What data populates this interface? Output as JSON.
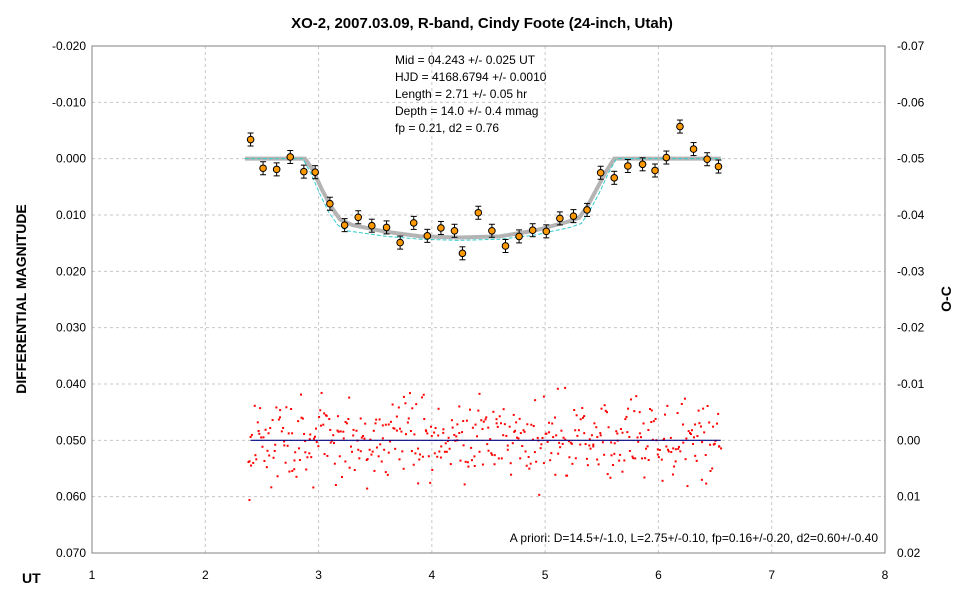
{
  "chart_data": {
    "type": "scatter",
    "title": "XO-2, 2007.03.09, R-band, Cindy Foote (24-inch, Utah)",
    "xlabel": "UT",
    "ylabel": "DIFFERENTIAL MAGNITUDE",
    "y2label": "O-C",
    "xlim": [
      1,
      8
    ],
    "ylim": [
      -0.02,
      0.07
    ],
    "y2lim": [
      -0.07,
      0.02
    ],
    "y_inverted": true,
    "grid": true,
    "x_ticks": [
      "1",
      "2",
      "3",
      "4",
      "5",
      "6",
      "7",
      "8"
    ],
    "y_ticks": [
      "-0.020",
      "-0.010",
      "0.000",
      "0.010",
      "0.020",
      "0.030",
      "0.040",
      "0.050",
      "0.060",
      "0.070"
    ],
    "y2_ticks": [
      "-0.07",
      "-0.06",
      "-0.05",
      "-0.04",
      "-0.03",
      "-0.02",
      "-0.01",
      "0.00",
      "0.01",
      "0.02"
    ],
    "fit_text": [
      "Mid  = 04.243 +/- 0.025 UT",
      "HJD = 4168.6794 +/- 0.0010",
      "Length = 2.71 +/- 0.05 hr",
      "Depth = 14.0 +/- 0.4 mmag",
      "fp = 0.21, d2 = 0.76"
    ],
    "apriori_text": "A priori: D=14.5+/-1.0, L=2.75+/-0.10, fp=0.16+/-0.20, d2=0.60+/-0.40",
    "colors": {
      "binned_points": "#ff9900",
      "raw_residuals": "#ff0000",
      "fit_model": "#b4b4b4",
      "apriori_model": "#33cccc",
      "zero_line": "#000080",
      "grid": "#c8c8c8"
    },
    "series": [
      {
        "kind": "binned_points",
        "x": [
          2.4,
          2.51,
          2.63,
          2.75,
          2.87,
          2.97,
          3.1,
          3.23,
          3.35,
          3.47,
          3.6,
          3.72,
          3.84,
          3.96,
          4.08,
          4.2,
          4.27,
          4.41,
          4.53,
          4.65,
          4.77,
          4.89,
          5.01,
          5.13,
          5.25,
          5.37,
          5.49,
          5.61,
          5.73,
          5.86,
          5.97,
          6.07,
          6.19,
          6.31,
          6.43,
          6.53
        ],
        "y": [
          -0.0034,
          0.0017,
          0.0019,
          -0.0003,
          0.0023,
          0.0024,
          0.008,
          0.0118,
          0.0104,
          0.0119,
          0.0122,
          0.0149,
          0.0114,
          0.0137,
          0.0123,
          0.0128,
          0.0168,
          0.0096,
          0.0128,
          0.0155,
          0.0138,
          0.0127,
          0.0129,
          0.0106,
          0.0102,
          0.0091,
          0.0025,
          0.0034,
          0.0013,
          0.001,
          0.0021,
          -0.0002,
          -0.0057,
          -0.0017,
          0.0001,
          0.0014
        ],
        "error": 0.0008
      },
      {
        "kind": "fit_model",
        "x": [
          2.35,
          2.88,
          2.95,
          3.03,
          3.11,
          3.19,
          3.3,
          3.6,
          3.9,
          4.24,
          4.6,
          4.9,
          5.2,
          5.3,
          5.38,
          5.46,
          5.54,
          5.61,
          6.55
        ],
        "y": [
          0.0,
          0.0,
          0.002,
          0.0055,
          0.0085,
          0.0108,
          0.0118,
          0.013,
          0.0138,
          0.014,
          0.0138,
          0.0128,
          0.0112,
          0.0105,
          0.0082,
          0.0052,
          0.0022,
          0.0,
          0.0
        ]
      },
      {
        "kind": "apriori_model",
        "x": [
          2.35,
          2.86,
          2.93,
          3.01,
          3.09,
          3.17,
          3.25,
          3.6,
          3.9,
          4.24,
          4.6,
          4.9,
          5.22,
          5.32,
          5.4,
          5.48,
          5.56,
          5.63,
          6.55
        ],
        "y": [
          0.0,
          0.0,
          0.0025,
          0.0062,
          0.0095,
          0.0118,
          0.0128,
          0.0138,
          0.0143,
          0.0145,
          0.0143,
          0.0136,
          0.0122,
          0.0115,
          0.009,
          0.006,
          0.0025,
          0.0,
          0.0
        ]
      },
      {
        "kind": "zero_line",
        "x": [
          2.4,
          6.55
        ],
        "y": [
          0.0,
          0.0
        ]
      },
      {
        "kind": "raw_residuals",
        "x_range": [
          2.38,
          6.55
        ],
        "count": 470,
        "scatter_sd": 0.0037,
        "outlier": [
          2.39,
          0.0106
        ]
      }
    ]
  }
}
